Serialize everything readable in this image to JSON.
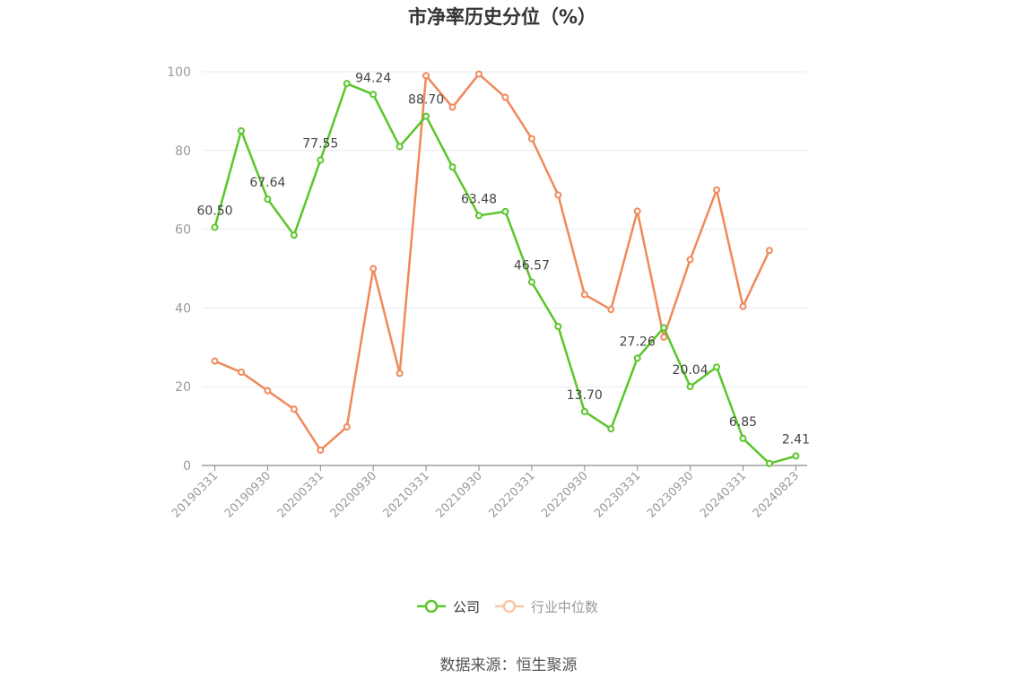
{
  "chart_data": {
    "type": "line",
    "title": "市净率历史分位（%）",
    "source": "数据来源：恒生聚源",
    "ylim": [
      0,
      100
    ],
    "yticks": [
      0,
      20,
      40,
      60,
      80,
      100
    ],
    "grid": true,
    "legend_position": "bottom-center",
    "categories": [
      "20190331",
      "20190630",
      "20190930",
      "20191231",
      "20200331",
      "20200630",
      "20200930",
      "20201231",
      "20210331",
      "20210630",
      "20210930",
      "20211231",
      "20220331",
      "20220630",
      "20220930",
      "20221231",
      "20230331",
      "20230630",
      "20230930",
      "20231231",
      "20240331",
      "20240630",
      "20240823"
    ],
    "x_tick_labels": [
      "20190331",
      "20190930",
      "20200331",
      "20200930",
      "20210331",
      "20210930",
      "20220331",
      "20220930",
      "20230331",
      "20230930",
      "20240331",
      "20240823"
    ],
    "series": [
      {
        "name": "公司",
        "color": "#5ac629",
        "values": [
          60.5,
          85.0,
          67.64,
          58.5,
          77.55,
          97.0,
          94.24,
          81.0,
          88.7,
          75.8,
          63.48,
          64.5,
          46.57,
          35.3,
          13.7,
          9.3,
          27.26,
          35.0,
          20.04,
          25.0,
          6.85,
          0.5,
          2.41
        ],
        "labels": {
          "0": "60.50",
          "2": "67.64",
          "4": "77.55",
          "6": "94.24",
          "8": "88.70",
          "10": "63.48",
          "12": "46.57",
          "14": "13.70",
          "16": "27.26",
          "18": "20.04",
          "20": "6.85",
          "22": "2.41"
        }
      },
      {
        "name": "行业中位数",
        "color": "#f0895a",
        "values": [
          26.5,
          23.7,
          19.0,
          14.3,
          3.9,
          9.8,
          50.0,
          23.4,
          99.0,
          91.0,
          99.4,
          93.5,
          83.0,
          68.7,
          43.4,
          39.6,
          64.6,
          32.6,
          52.3,
          70.0,
          40.4,
          54.6,
          null
        ]
      }
    ]
  }
}
